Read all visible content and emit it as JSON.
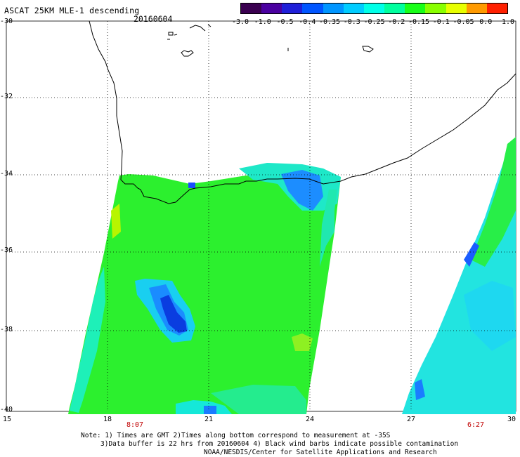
{
  "header": {
    "title": "ASCAT 25KM MLE-1 descending",
    "date": "20160604"
  },
  "colorbar": {
    "labels": [
      "-3.0",
      "-1.0",
      "-0.5",
      "-0.4",
      "-0.35",
      "-0.3",
      "-0.25",
      "-0.2",
      "-0.15",
      "-0.1",
      "-0.05",
      "0.0",
      "1.0"
    ],
    "colors": [
      "#3a0050",
      "#4a00a0",
      "#1f1fd8",
      "#0055ff",
      "#0095ff",
      "#00ccff",
      "#00ffe8",
      "#00ff9e",
      "#19ff19",
      "#89ff00",
      "#e8ff00",
      "#ff9a00",
      "#ff2000"
    ]
  },
  "axes": {
    "lat_labels": [
      "-30",
      "-32",
      "-34",
      "-36",
      "-38",
      "-40"
    ],
    "lon_labels": [
      "15",
      "18",
      "21",
      "24",
      "27",
      "30"
    ],
    "pass_times": [
      "8:07",
      "6:27"
    ]
  },
  "note": {
    "line1": "Note: 1) Times are GMT 2)Times along bottom correspond to measurement at -35S",
    "line2": "3)Data buffer is 22 hrs from 20160604 4) Black wind barbs indicate possible contamination",
    "line3": "NOAA/NESDIS/Center for Satellite Applications and Research"
  }
}
